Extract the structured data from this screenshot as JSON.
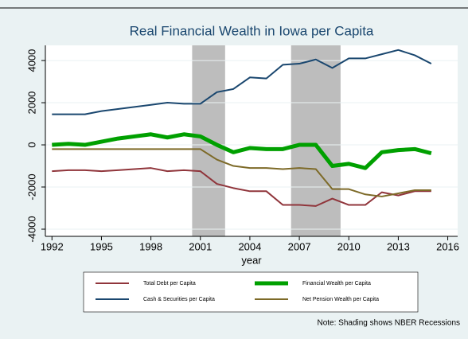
{
  "chart_data": {
    "type": "line",
    "title": "Real Financial Wealth in Iowa per Capita",
    "x_label": "year",
    "note": "Note: Shading shows NBER Recessions",
    "x": [
      1992,
      1993,
      1994,
      1995,
      1996,
      1997,
      1998,
      1999,
      2000,
      2001,
      2002,
      2003,
      2004,
      2005,
      2006,
      2007,
      2008,
      2009,
      2010,
      2011,
      2012,
      2013,
      2014,
      2015
    ],
    "series": [
      {
        "name": "Total Debt per Capita",
        "color": "#90353b",
        "width": 2,
        "values": [
          -1250,
          -1200,
          -1200,
          -1250,
          -1200,
          -1150,
          -1100,
          -1250,
          -1200,
          -1250,
          -1850,
          -2050,
          -2200,
          -2200,
          -2850,
          -2850,
          -2900,
          -2550,
          -2850,
          -2850,
          -2250,
          -2400,
          -2200,
          -2200
        ]
      },
      {
        "name": "Financial Wealth per Capita",
        "color": "#00a000",
        "width": 5,
        "values": [
          0,
          50,
          0,
          150,
          300,
          400,
          500,
          350,
          500,
          400,
          0,
          -350,
          -150,
          -200,
          -200,
          0,
          0,
          -1000,
          -900,
          -1100,
          -350,
          -250,
          -200,
          -400
        ]
      },
      {
        "name": "Cash & Securities per Capita",
        "color": "#1a476f",
        "width": 2,
        "values": [
          1450,
          1450,
          1450,
          1600,
          1700,
          1800,
          1900,
          2000,
          1950,
          1950,
          2500,
          2650,
          3200,
          3150,
          3800,
          3850,
          4050,
          3650,
          4100,
          4100,
          4300,
          4500,
          4250,
          3850
        ]
      },
      {
        "name": "Net Pension Wealth per Capita",
        "color": "#7d6a28",
        "width": 2,
        "values": [
          -200,
          -200,
          -200,
          -200,
          -200,
          -200,
          -200,
          -200,
          -200,
          -200,
          -700,
          -1000,
          -1100,
          -1100,
          -1150,
          -1100,
          -1150,
          -2100,
          -2100,
          -2350,
          -2450,
          -2300,
          -2150,
          -2150
        ]
      }
    ],
    "recessions": [
      [
        2000.5,
        2002.5
      ],
      [
        2006.5,
        2009.5
      ]
    ],
    "recession_color": "#bdbdbd",
    "xlim": [
      1991.6,
      2016.6
    ],
    "xticks": [
      1992,
      1995,
      1998,
      2001,
      2004,
      2007,
      2010,
      2013,
      2016
    ],
    "ylim": [
      -4340,
      4720
    ],
    "yticks": [
      -4000,
      -2000,
      0,
      2000,
      4000
    ],
    "grid": true
  }
}
